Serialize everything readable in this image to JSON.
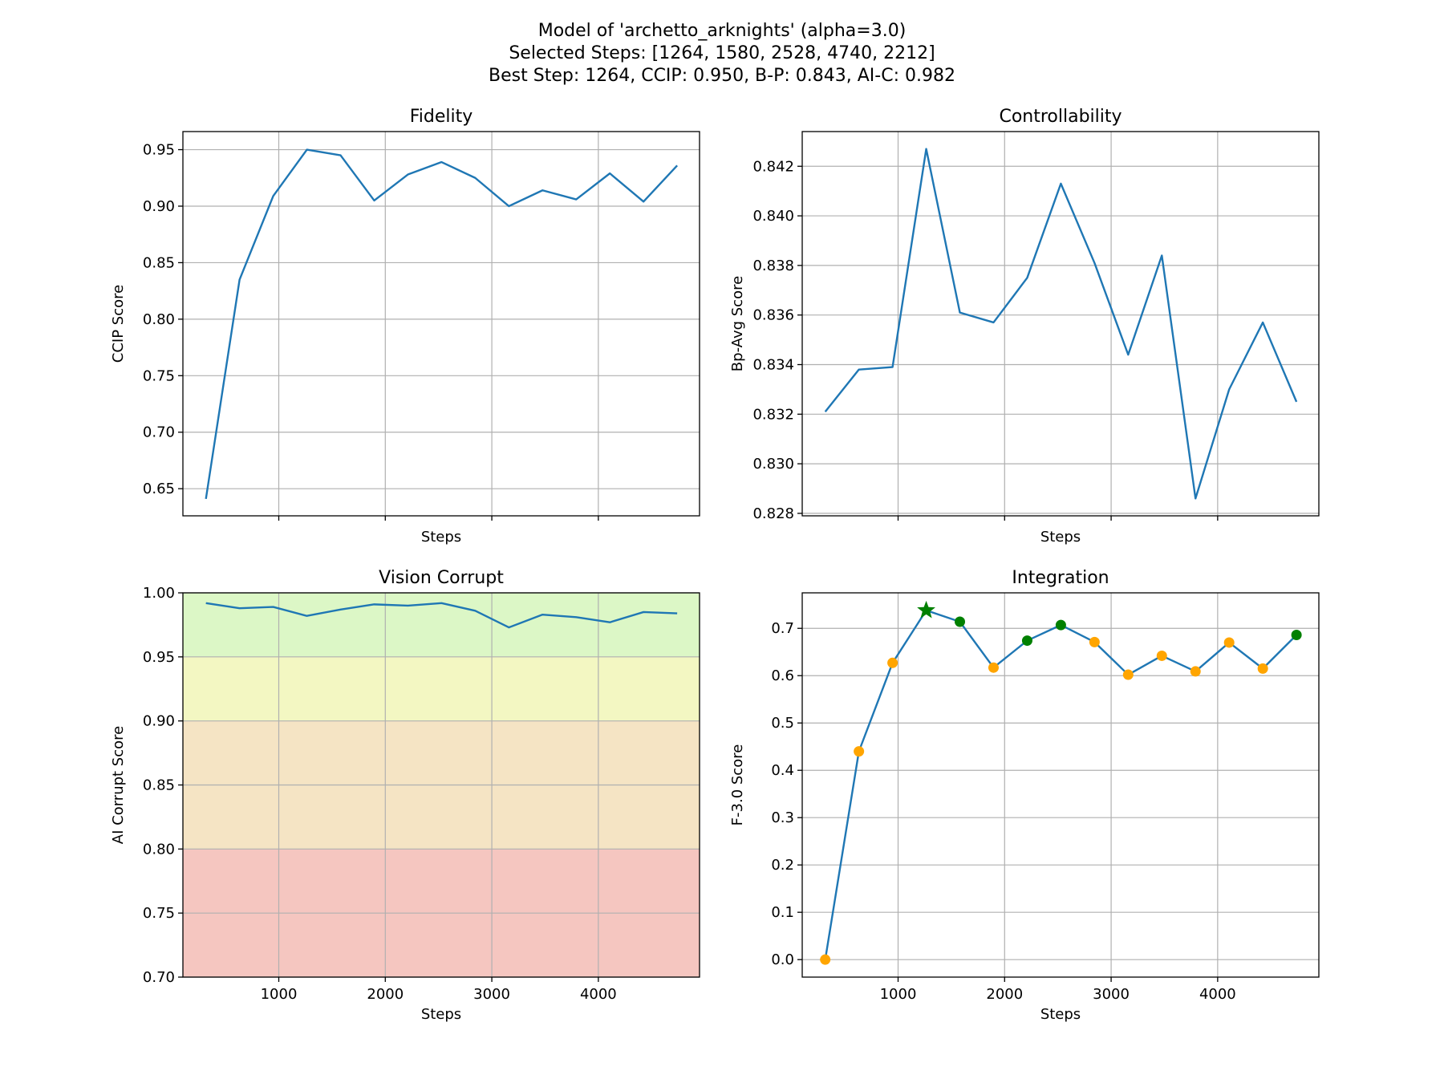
{
  "figure": {
    "title_lines": [
      "Model of 'archetto_arknights' (alpha=3.0)",
      "Selected Steps: [1264, 1580, 2528, 4740, 2212]",
      "Best Step: 1264, CCIP: 0.950, B-P: 0.843, AI-C: 0.982"
    ]
  },
  "colors": {
    "line": "#1f77b4",
    "selected_marker": "#008000",
    "other_marker": "#ffa500",
    "best_marker": "#008000",
    "band_red": "#f5c6c0",
    "band_orange": "#f5e4c4",
    "band_yellow": "#f3f7c2",
    "band_green": "#dcf7c6"
  },
  "chart_data": [
    {
      "id": "fidelity",
      "type": "line",
      "title": "Fidelity",
      "xlabel": "Steps",
      "ylabel": "CCIP Score",
      "x": [
        316,
        632,
        948,
        1264,
        1580,
        1896,
        2212,
        2528,
        2844,
        3160,
        3476,
        3792,
        4108,
        4424,
        4740
      ],
      "y": [
        0.641,
        0.835,
        0.909,
        0.95,
        0.945,
        0.905,
        0.928,
        0.939,
        0.925,
        0.9,
        0.914,
        0.906,
        0.929,
        0.904,
        0.936
      ],
      "xlim": [
        100,
        4950
      ],
      "ylim": [
        0.626,
        0.966
      ],
      "xticks": [
        1000,
        2000,
        3000,
        4000
      ],
      "xtick_labels_shown": false,
      "yticks": [
        0.65,
        0.7,
        0.75,
        0.8,
        0.85,
        0.9,
        0.95
      ],
      "ytick_labels": [
        "0.65",
        "0.70",
        "0.75",
        "0.80",
        "0.85",
        "0.90",
        "0.95"
      ],
      "grid": true
    },
    {
      "id": "controllability",
      "type": "line",
      "title": "Controllability",
      "xlabel": "Steps",
      "ylabel": "Bp-Avg Score",
      "x": [
        316,
        632,
        948,
        1264,
        1580,
        1896,
        2212,
        2528,
        2844,
        3160,
        3476,
        3792,
        4108,
        4424,
        4740
      ],
      "y": [
        0.8321,
        0.8338,
        0.8339,
        0.8427,
        0.8361,
        0.8357,
        0.8375,
        0.8413,
        0.8381,
        0.8344,
        0.8384,
        0.8286,
        0.833,
        0.8357,
        0.8325
      ],
      "xlim": [
        100,
        4950
      ],
      "ylim": [
        0.8279,
        0.8434
      ],
      "xticks": [
        1000,
        2000,
        3000,
        4000
      ],
      "xtick_labels_shown": false,
      "yticks": [
        0.828,
        0.83,
        0.832,
        0.834,
        0.836,
        0.838,
        0.84,
        0.842
      ],
      "ytick_labels": [
        "0.828",
        "0.830",
        "0.832",
        "0.834",
        "0.836",
        "0.838",
        "0.840",
        "0.842"
      ],
      "grid": true
    },
    {
      "id": "vision-corrupt",
      "type": "line",
      "title": "Vision Corrupt",
      "xlabel": "Steps",
      "ylabel": "AI Corrupt Score",
      "x": [
        316,
        632,
        948,
        1264,
        1580,
        1896,
        2212,
        2528,
        2844,
        3160,
        3476,
        3792,
        4108,
        4424,
        4740
      ],
      "y": [
        0.992,
        0.988,
        0.989,
        0.982,
        0.987,
        0.991,
        0.99,
        0.992,
        0.986,
        0.973,
        0.983,
        0.981,
        0.977,
        0.985,
        0.984
      ],
      "xlim": [
        100,
        4950
      ],
      "ylim": [
        0.7,
        1.0
      ],
      "xticks": [
        1000,
        2000,
        3000,
        4000
      ],
      "xtick_labels": [
        "1000",
        "2000",
        "3000",
        "4000"
      ],
      "xtick_labels_shown": true,
      "yticks": [
        0.7,
        0.75,
        0.8,
        0.85,
        0.9,
        0.95,
        1.0
      ],
      "ytick_labels": [
        "0.70",
        "0.75",
        "0.80",
        "0.85",
        "0.90",
        "0.95",
        "1.00"
      ],
      "bands": [
        {
          "from": 0.7,
          "to": 0.8,
          "color": "band_red"
        },
        {
          "from": 0.8,
          "to": 0.9,
          "color": "band_orange"
        },
        {
          "from": 0.9,
          "to": 0.95,
          "color": "band_yellow"
        },
        {
          "from": 0.95,
          "to": 1.0,
          "color": "band_green"
        }
      ],
      "grid": true
    },
    {
      "id": "integration",
      "type": "line",
      "title": "Integration",
      "xlabel": "Steps",
      "ylabel": "F-3.0 Score",
      "x": [
        316,
        632,
        948,
        1264,
        1580,
        1896,
        2212,
        2528,
        2844,
        3160,
        3476,
        3792,
        4108,
        4424,
        4740
      ],
      "y": [
        0.0,
        0.44,
        0.627,
        0.738,
        0.714,
        0.617,
        0.674,
        0.707,
        0.671,
        0.602,
        0.642,
        0.609,
        0.67,
        0.615,
        0.686
      ],
      "selected_steps": [
        1264,
        1580,
        2528,
        4740,
        2212
      ],
      "best_step": 1264,
      "xlim": [
        100,
        4950
      ],
      "ylim": [
        -0.037,
        0.775
      ],
      "xticks": [
        1000,
        2000,
        3000,
        4000
      ],
      "xtick_labels": [
        "1000",
        "2000",
        "3000",
        "4000"
      ],
      "xtick_labels_shown": true,
      "yticks": [
        0.0,
        0.1,
        0.2,
        0.3,
        0.4,
        0.5,
        0.6,
        0.7
      ],
      "ytick_labels": [
        "0.0",
        "0.1",
        "0.2",
        "0.3",
        "0.4",
        "0.5",
        "0.6",
        "0.7"
      ],
      "grid": true
    }
  ]
}
